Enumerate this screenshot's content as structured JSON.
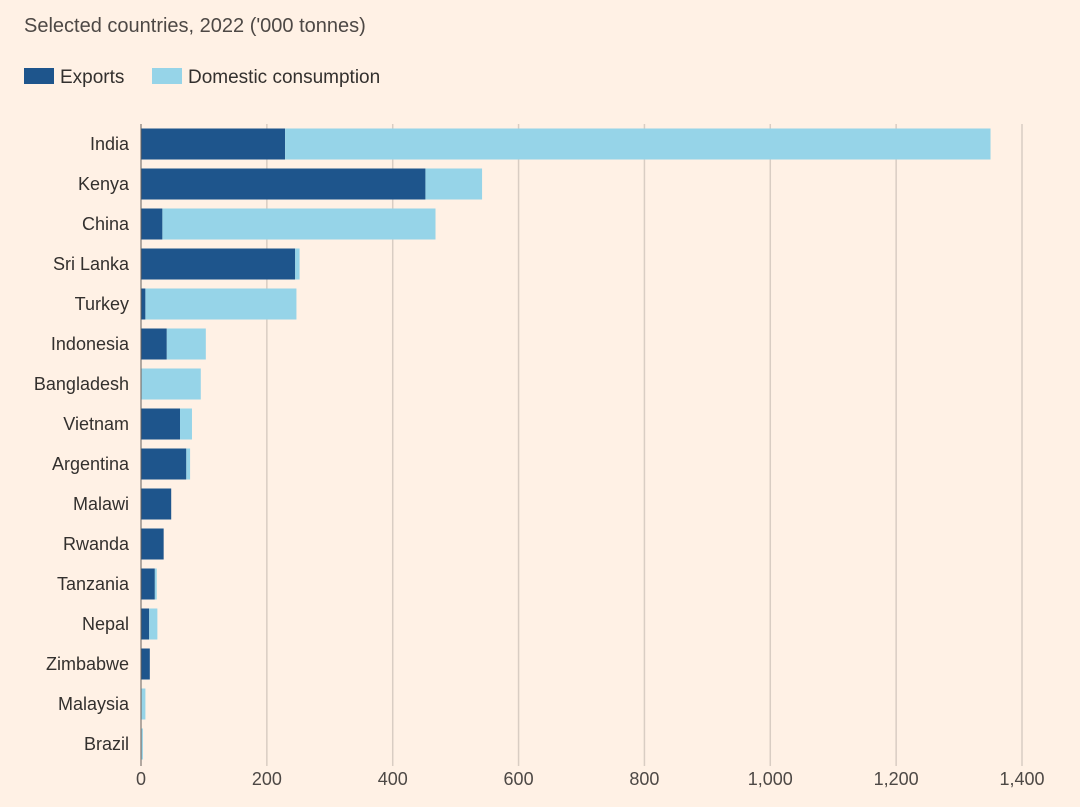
{
  "chart_data": {
    "type": "bar",
    "orientation": "horizontal",
    "stacked": true,
    "title": "Selected countries, 2022 ('000 tonnes)",
    "categories": [
      "India",
      "Kenya",
      "China",
      "Sri Lanka",
      "Turkey",
      "Indonesia",
      "Bangladesh",
      "Vietnam",
      "Argentina",
      "Malawi",
      "Rwanda",
      "Tanzania",
      "Nepal",
      "Zimbabwe",
      "Malaysia",
      "Brazil"
    ],
    "series": [
      {
        "name": "Exports",
        "color": "#1e558c",
        "values": [
          229,
          452,
          34,
          245,
          7,
          41,
          1,
          62,
          72,
          48,
          36,
          22,
          13,
          14,
          1,
          1
        ]
      },
      {
        "name": "Domestic consumption",
        "color": "#96d4e8",
        "values": [
          1121,
          90,
          434,
          7,
          240,
          62,
          94,
          19,
          6,
          0,
          0,
          3,
          13,
          0,
          6,
          2
        ]
      }
    ],
    "xlim": [
      0,
      1400
    ],
    "xticks": [
      0,
      200,
      400,
      600,
      800,
      1000,
      1200,
      1400
    ],
    "xtick_labels": [
      "0",
      "200",
      "400",
      "600",
      "800",
      "1,000",
      "1,200",
      "1,400"
    ],
    "grid": "vertical",
    "legend": "top-left"
  }
}
